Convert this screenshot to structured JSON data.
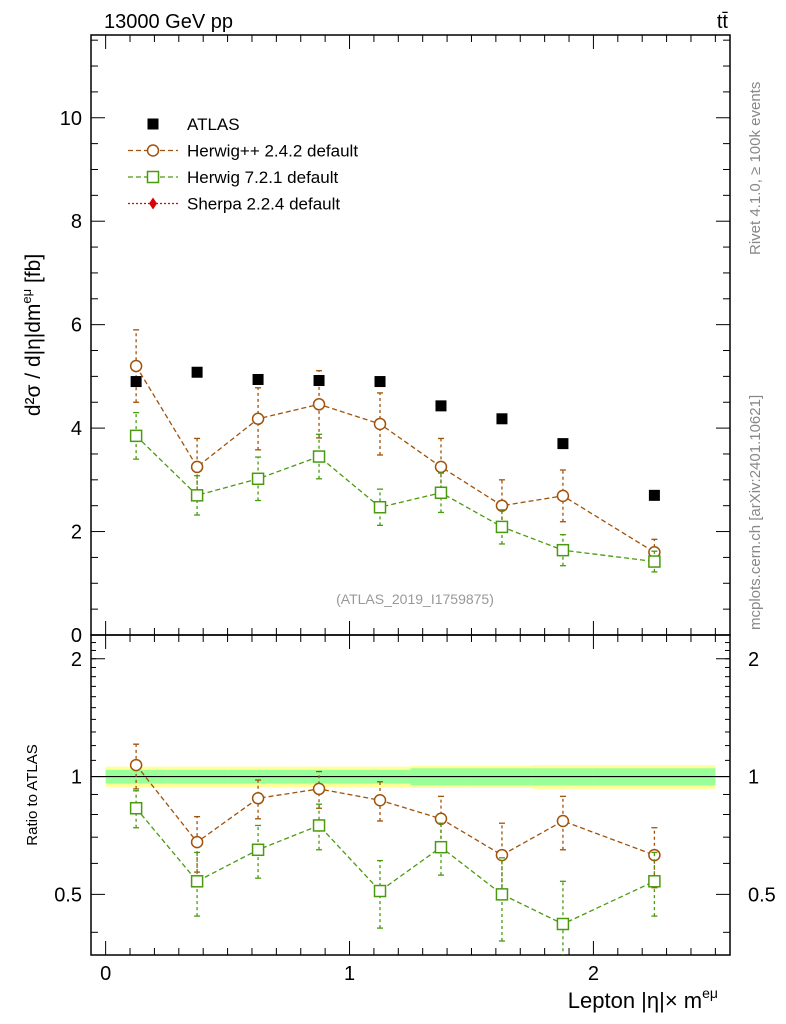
{
  "header": {
    "energy_label": "13000 GeV pp",
    "process_label": "tt̄"
  },
  "side_labels": {
    "rivet": "Rivet 4.1.0, ≥ 100k events",
    "mcplots": "mcplots.cern.ch [arXiv:2401.10621]"
  },
  "watermark": "(ATLAS_2019_I1759875)",
  "chart_data": {
    "type": "scatter",
    "xlabel": "Lepton |η|× m",
    "xlabel_sup": "eμ",
    "xlim": [
      -0.06,
      2.56
    ],
    "x_ticks": [
      0,
      1,
      2
    ],
    "main": {
      "ylabel": "d²σ / d|η|dm",
      "ylabel_sup": "eμ",
      "ylabel_unit": " [fb]",
      "ylim": [
        0,
        11.6
      ],
      "y_ticks": [
        0,
        2,
        4,
        6,
        8,
        10
      ]
    },
    "ratio": {
      "ylabel": "Ratio to ATLAS",
      "ylim": [
        0.35,
        2.3
      ],
      "y_ticks": [
        0.5,
        1,
        2
      ],
      "y_tick_labels": [
        "0.5",
        "1",
        "2"
      ]
    },
    "x": [
      0.125,
      0.375,
      0.625,
      0.875,
      1.125,
      1.375,
      1.625,
      1.875,
      2.25
    ],
    "x_edges": [
      0,
      0.25,
      0.5,
      0.75,
      1.0,
      1.25,
      1.5,
      1.75,
      2.0,
      2.5
    ],
    "series": [
      {
        "name": "ATLAS",
        "color": "#000000",
        "marker": "square-filled",
        "values": [
          4.9,
          5.08,
          4.94,
          4.92,
          4.9,
          4.43,
          4.18,
          3.7,
          2.7
        ],
        "band_inner": [
          0.04,
          0.04,
          0.04,
          0.04,
          0.04,
          0.05,
          0.05,
          0.05,
          0.05
        ],
        "band_outer": [
          0.06,
          0.06,
          0.06,
          0.06,
          0.06,
          0.065,
          0.065,
          0.07,
          0.07
        ]
      },
      {
        "name": "Herwig++ 2.4.2 default",
        "color": "#a0520a",
        "marker": "circle-open",
        "values": [
          5.2,
          3.25,
          4.18,
          4.46,
          4.08,
          3.25,
          2.5,
          2.69,
          1.6
        ],
        "errors": [
          0.7,
          0.55,
          0.6,
          0.65,
          0.6,
          0.55,
          0.5,
          0.5,
          0.25
        ],
        "ratio": [
          1.07,
          0.68,
          0.88,
          0.93,
          0.87,
          0.78,
          0.63,
          0.77,
          0.63
        ],
        "ratio_errors": [
          0.14,
          0.11,
          0.1,
          0.1,
          0.1,
          0.11,
          0.13,
          0.12,
          0.11
        ]
      },
      {
        "name": "Herwig 7.2.1 default",
        "color": "#4a9a10",
        "marker": "square-open",
        "values": [
          3.85,
          2.7,
          3.02,
          3.45,
          2.47,
          2.75,
          2.09,
          1.64,
          1.42
        ],
        "errors": [
          0.45,
          0.38,
          0.42,
          0.43,
          0.35,
          0.38,
          0.33,
          0.3,
          0.2
        ],
        "ratio": [
          0.83,
          0.54,
          0.65,
          0.75,
          0.51,
          0.66,
          0.5,
          0.42,
          0.54
        ],
        "ratio_errors": [
          0.09,
          0.1,
          0.1,
          0.1,
          0.1,
          0.1,
          0.12,
          0.12,
          0.1
        ]
      },
      {
        "name": "Sherpa 2.2.4 default",
        "color": "#e00000",
        "marker": "diamond-filled",
        "values": [],
        "ratio": []
      }
    ]
  }
}
